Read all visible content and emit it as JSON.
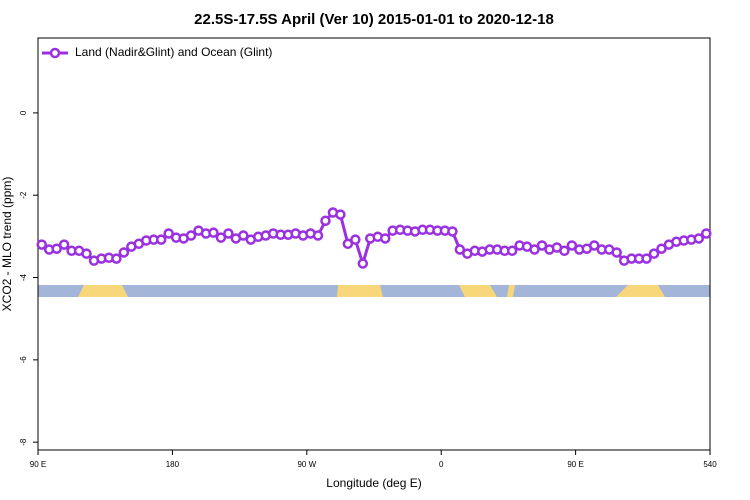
{
  "chart_data": {
    "type": "line",
    "title": "22.5S-17.5S April (Ver 10)   2015-01-01 to 2020-12-18",
    "x_label": "Longitude (deg E)",
    "y_label": "XCO2 - MLO trend (ppm)",
    "xlim": [
      90,
      540
    ],
    "xticks": [
      {
        "value": 90,
        "label": "90 E"
      },
      180,
      {
        "value": 270,
        "label": "90 W"
      },
      {
        "value": 360,
        "label": "0"
      },
      {
        "value": 450,
        "label": "90 E"
      },
      540
    ],
    "ylim": [
      -8.19,
      1.82
    ],
    "yticks": [
      -8,
      -6,
      -4,
      -2,
      0
    ],
    "legend": "top-left",
    "x": [
      92.5,
      97.5,
      102.5,
      107.5,
      112.5,
      117.5,
      122.5,
      127.5,
      132.5,
      137.5,
      142.5,
      147.5,
      152.5,
      157.5,
      162.5,
      167.5,
      172.5,
      177.5,
      182.5,
      187.5,
      192.5,
      197.5,
      202.5,
      207.5,
      212.5,
      217.5,
      222.5,
      227.5,
      232.5,
      237.5,
      242.5,
      247.5,
      252.5,
      257.5,
      262.5,
      267.5,
      272.5,
      277.5,
      282.5,
      287.5,
      292.5,
      297.5,
      302.5,
      307.5,
      312.5,
      317.5,
      322.5,
      327.5,
      332.5,
      337.5,
      342.5,
      347.5,
      352.5,
      357.5,
      362.5,
      367.5,
      372.5,
      377.5,
      382.5,
      387.5,
      392.5,
      397.5,
      402.5,
      407.5,
      412.5,
      417.5,
      422.5,
      427.5,
      432.5,
      437.5,
      442.5,
      447.5,
      452.5,
      457.5,
      462.5,
      467.5,
      472.5,
      477.5,
      482.5,
      487.5,
      492.5,
      497.5,
      502.5,
      507.5,
      512.5,
      517.5,
      522.5,
      527.5,
      532.5,
      537.5
    ],
    "series": [
      {
        "name": "Land (Nadir&Glint) and Ocean (Glint)",
        "color": "#9b30e0",
        "values": [
          -3.2,
          -3.32,
          -3.3,
          -3.2,
          -3.35,
          -3.35,
          -3.42,
          -3.59,
          -3.54,
          -3.52,
          -3.54,
          -3.39,
          -3.25,
          -3.18,
          -3.1,
          -3.08,
          -3.08,
          -2.93,
          -3.03,
          -3.05,
          -2.98,
          -2.86,
          -2.93,
          -2.91,
          -3.03,
          -2.93,
          -3.05,
          -2.98,
          -3.08,
          -3.01,
          -2.98,
          -2.93,
          -2.96,
          -2.96,
          -2.93,
          -2.98,
          -2.93,
          -2.98,
          -2.62,
          -2.42,
          -2.47,
          -3.18,
          -3.08,
          -3.66,
          -3.05,
          -3.01,
          -3.05,
          -2.86,
          -2.84,
          -2.86,
          -2.88,
          -2.84,
          -2.84,
          -2.86,
          -2.86,
          -2.88,
          -3.32,
          -3.42,
          -3.35,
          -3.37,
          -3.32,
          -3.32,
          -3.35,
          -3.35,
          -3.22,
          -3.25,
          -3.32,
          -3.22,
          -3.32,
          -3.27,
          -3.35,
          -3.22,
          -3.32,
          -3.3,
          -3.22,
          -3.32,
          -3.32,
          -3.39,
          -3.59,
          -3.54,
          -3.54,
          -3.54,
          -3.42,
          -3.3,
          -3.2,
          -3.13,
          -3.1,
          -3.08,
          -3.05,
          -2.93
        ]
      }
    ]
  }
}
